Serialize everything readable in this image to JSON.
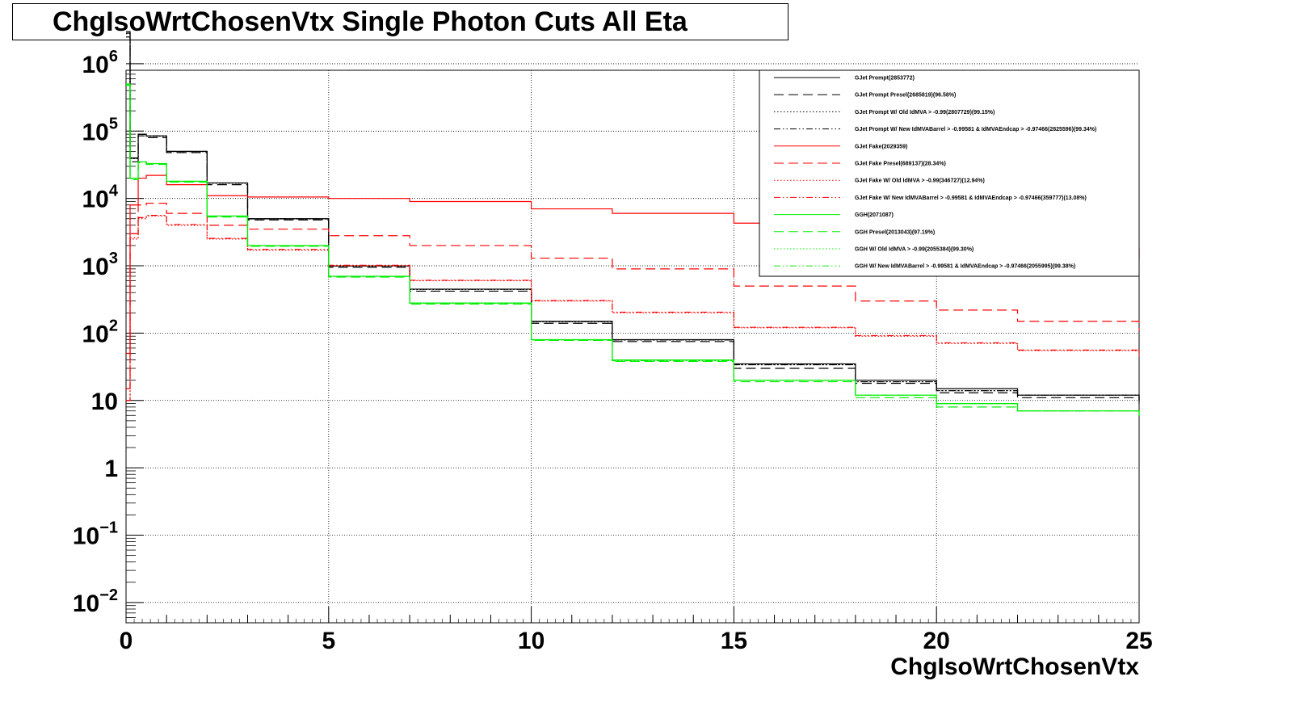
{
  "chart_data": {
    "type": "line",
    "title": "ChgIsoWrtChosenVtx Single Photon Cuts All Eta",
    "xlabel": "ChgIsoWrtChosenVtx",
    "ylabel": "",
    "xlim": [
      0,
      25
    ],
    "ylim": [
      0.005,
      800000
    ],
    "y_scale": "log",
    "grid": true,
    "legend_position": "top-right",
    "x_ticks": [
      "0",
      "5",
      "10",
      "15",
      "20",
      "25"
    ],
    "y_ticks": [
      {
        "value": 0.01,
        "base": "10",
        "exp": "−2"
      },
      {
        "value": 0.1,
        "base": "10",
        "exp": "−1"
      },
      {
        "value": 1,
        "base": "1",
        "exp": ""
      },
      {
        "value": 10,
        "base": "10",
        "exp": ""
      },
      {
        "value": 100,
        "base": "10",
        "exp": "2"
      },
      {
        "value": 1000,
        "base": "10",
        "exp": "3"
      },
      {
        "value": 10000,
        "base": "10",
        "exp": "4"
      },
      {
        "value": 100000,
        "base": "10",
        "exp": "5"
      },
      {
        "value": 1000000,
        "base": "10",
        "exp": "6"
      }
    ],
    "series": [
      {
        "name": "GJet Prompt(2853772)",
        "color": "#000000",
        "dash": "solid",
        "x": [
          0,
          0.1,
          0.3,
          0.5,
          1,
          2,
          3,
          5,
          7,
          10,
          12,
          15,
          18,
          20,
          22,
          25
        ],
        "values": [
          3000000,
          40000,
          90000,
          85000,
          50000,
          17000,
          5000,
          1000,
          450,
          150,
          80,
          35,
          20,
          15,
          12,
          10
        ]
      },
      {
        "name": "GJet Prompt Presel(2685819)(96.58%)",
        "color": "#000000",
        "dash": "long-dash",
        "x": [
          0,
          0.1,
          0.3,
          0.5,
          1,
          2,
          3,
          5,
          7,
          10,
          12,
          15,
          18,
          20,
          22,
          25
        ],
        "values": [
          2500000,
          35000,
          85000,
          80000,
          48000,
          16000,
          4800,
          950,
          420,
          140,
          75,
          30,
          18,
          13,
          11,
          9
        ]
      },
      {
        "name": "GJet Prompt W/ Old IdMVA > -0.99(2807729)(99.15%)",
        "color": "#000000",
        "dash": "dotted",
        "x": [
          0,
          0.1,
          0.3,
          0.5,
          1,
          2,
          3,
          5,
          7,
          10,
          12,
          15,
          18,
          20,
          22,
          25
        ],
        "values": [
          2800000,
          39000,
          89000,
          84000,
          49500,
          16800,
          4950,
          990,
          445,
          148,
          79,
          34,
          19,
          14,
          12,
          10
        ]
      },
      {
        "name": "GJet Prompt W/ New IdMVABarrel > -0.99581 & IdMVAEndcap > -0.97466(2825596)(99.34%)",
        "color": "#000000",
        "dash": "dash-dot-dot",
        "x": [
          0,
          0.1,
          0.3,
          0.5,
          1,
          2,
          3,
          5,
          7,
          10,
          12,
          15,
          18,
          20,
          22,
          25
        ],
        "values": [
          2850000,
          39500,
          89500,
          84500,
          49800,
          16900,
          4980,
          995,
          448,
          149,
          79,
          34,
          19,
          14,
          12,
          10
        ]
      },
      {
        "name": "GJet Fake(2029359)",
        "color": "#ff0000",
        "dash": "solid",
        "x": [
          0,
          0.1,
          0.3,
          0.5,
          1,
          2,
          3,
          5,
          7,
          10,
          12,
          15,
          18,
          20,
          22,
          25
        ],
        "values": [
          50,
          8000,
          20000,
          22000,
          16000,
          11000,
          10500,
          10000,
          9000,
          7000,
          6000,
          4300,
          3000,
          2300,
          1800,
          1300
        ]
      },
      {
        "name": "GJet Fake Presel(689137)(28.34%)",
        "color": "#ff0000",
        "dash": "long-dash",
        "x": [
          0,
          0.1,
          0.3,
          0.5,
          1,
          2,
          3,
          5,
          7,
          10,
          12,
          15,
          18,
          20,
          22,
          25
        ],
        "values": [
          15,
          3000,
          8000,
          8500,
          6000,
          4000,
          3500,
          2800,
          2000,
          1300,
          900,
          500,
          300,
          220,
          150,
          110
        ]
      },
      {
        "name": "GJet Fake W/ Old IdMVA > -0.99(346727)(12.94%)",
        "color": "#ff0000",
        "dash": "dotted",
        "x": [
          0,
          0.1,
          0.3,
          0.5,
          1,
          2,
          3,
          5,
          7,
          10,
          12,
          15,
          18,
          20,
          22,
          25
        ],
        "values": [
          10,
          2500,
          5000,
          5500,
          4000,
          2500,
          1700,
          1000,
          600,
          300,
          200,
          120,
          90,
          70,
          55,
          45
        ]
      },
      {
        "name": "GJet Fake W/ New IdMVABarrel > -0.99581 & IdMVAEndcap > -0.97466(359777)(13.08%)",
        "color": "#ff0000",
        "dash": "dash-dot-dot",
        "x": [
          0,
          0.1,
          0.3,
          0.5,
          1,
          2,
          3,
          5,
          7,
          10,
          12,
          15,
          18,
          20,
          22,
          25
        ],
        "values": [
          10,
          2600,
          5200,
          5600,
          4100,
          2550,
          1750,
          1020,
          610,
          305,
          205,
          122,
          92,
          72,
          56,
          46
        ]
      },
      {
        "name": "GGH(2071087)",
        "color": "#00ee00",
        "dash": "solid",
        "x": [
          0,
          0.1,
          0.3,
          0.5,
          1,
          2,
          3,
          5,
          7,
          10,
          12,
          15,
          18,
          20,
          22,
          25
        ],
        "values": [
          500000,
          20000,
          35000,
          33000,
          18000,
          5500,
          2000,
          700,
          280,
          80,
          40,
          20,
          12,
          9,
          7,
          6
        ]
      },
      {
        "name": "GGH Presel(2013043)(97.19%)",
        "color": "#00ee00",
        "dash": "long-dash",
        "x": [
          0,
          0.1,
          0.3,
          0.5,
          1,
          2,
          3,
          5,
          7,
          10,
          12,
          15,
          18,
          20,
          22,
          25
        ],
        "values": [
          480000,
          19000,
          34000,
          32000,
          17500,
          5300,
          1950,
          680,
          270,
          78,
          38,
          19,
          11,
          8,
          7,
          6
        ]
      },
      {
        "name": "GGH W/ Old IdMVA > -0.99(2055384)(99.30%)",
        "color": "#00ee00",
        "dash": "dotted",
        "x": [
          0,
          0.1,
          0.3,
          0.5,
          1,
          2,
          3,
          5,
          7,
          10,
          12,
          15,
          18,
          20,
          22,
          25
        ],
        "values": [
          495000,
          19800,
          34800,
          32800,
          17900,
          5450,
          1990,
          695,
          278,
          79,
          39,
          20,
          12,
          9,
          7,
          6
        ]
      },
      {
        "name": "GGH W/ New IdMVABarrel > -0.99581 & IdMVAEndcap > -0.97466(2055995)(99.38%)",
        "color": "#00ee00",
        "dash": "dash-dot-dot",
        "x": [
          0,
          0.1,
          0.3,
          0.5,
          1,
          2,
          3,
          5,
          7,
          10,
          12,
          15,
          18,
          20,
          22,
          25
        ],
        "values": [
          496000,
          19850,
          34850,
          32850,
          17950,
          5460,
          1992,
          697,
          279,
          79,
          39,
          20,
          12,
          9,
          7,
          6
        ]
      }
    ]
  }
}
